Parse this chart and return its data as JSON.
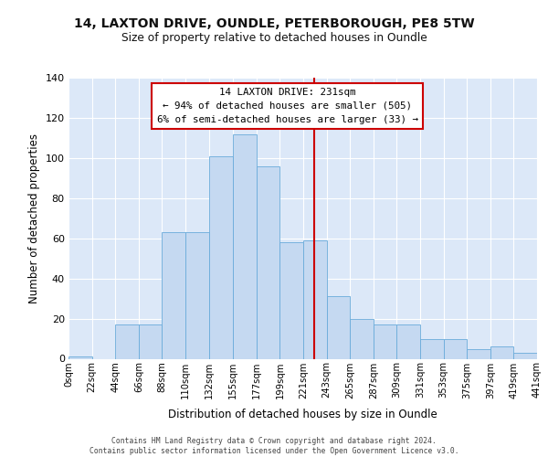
{
  "title1": "14, LAXTON DRIVE, OUNDLE, PETERBOROUGH, PE8 5TW",
  "title2": "Size of property relative to detached houses in Oundle",
  "xlabel": "Distribution of detached houses by size in Oundle",
  "ylabel": "Number of detached properties",
  "bar_color": "#c5d9f1",
  "bar_edge_color": "#6aabda",
  "bg_color": "#dce8f8",
  "vline_x": 231,
  "vline_color": "#cc0000",
  "annotation_text": "14 LAXTON DRIVE: 231sqm\n← 94% of detached houses are smaller (505)\n6% of semi-detached houses are larger (33) →",
  "bin_edges": [
    0,
    22,
    44,
    66,
    88,
    110,
    132,
    155,
    177,
    199,
    221,
    243,
    265,
    287,
    309,
    331,
    353,
    375,
    397,
    419,
    441
  ],
  "bar_heights": [
    1,
    0,
    17,
    17,
    63,
    63,
    101,
    112,
    96,
    58,
    59,
    31,
    20,
    17,
    17,
    10,
    10,
    5,
    6,
    3
  ],
  "ylim": [
    0,
    140
  ],
  "yticks": [
    0,
    20,
    40,
    60,
    80,
    100,
    120,
    140
  ],
  "footer": "Contains HM Land Registry data © Crown copyright and database right 2024.\nContains public sector information licensed under the Open Government Licence v3.0.",
  "tick_labels": [
    "0sqm",
    "22sqm",
    "44sqm",
    "66sqm",
    "88sqm",
    "110sqm",
    "132sqm",
    "155sqm",
    "177sqm",
    "199sqm",
    "221sqm",
    "243sqm",
    "265sqm",
    "287sqm",
    "309sqm",
    "331sqm",
    "353sqm",
    "375sqm",
    "397sqm",
    "419sqm",
    "441sqm"
  ]
}
